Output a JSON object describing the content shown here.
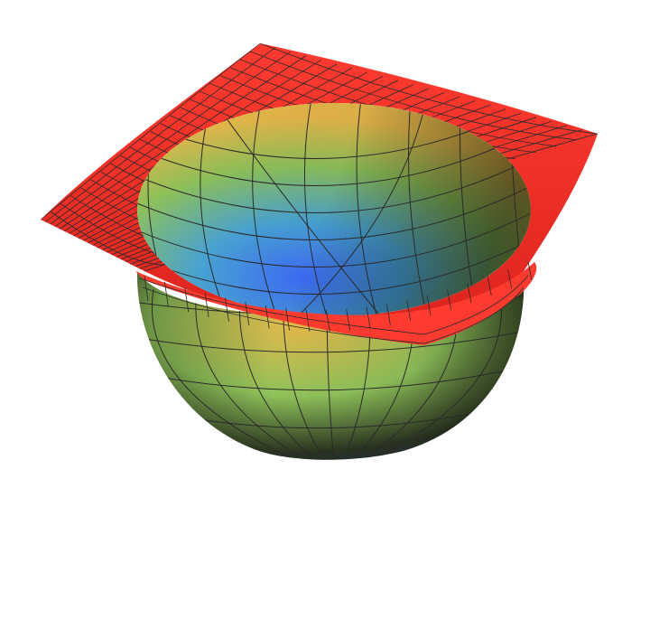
{
  "scene": {
    "subject": "surface-plot",
    "colors": {
      "background": "#ffffff",
      "rim": "#ff3b30",
      "rim_dark": "#d9231c",
      "mesh": "#2a2a2a",
      "bowl_blue": "#3f6fff",
      "bowl_green": "#8fc25a",
      "bowl_yellow": "#e6b84a",
      "bowl_dark": "#2a3320"
    }
  }
}
